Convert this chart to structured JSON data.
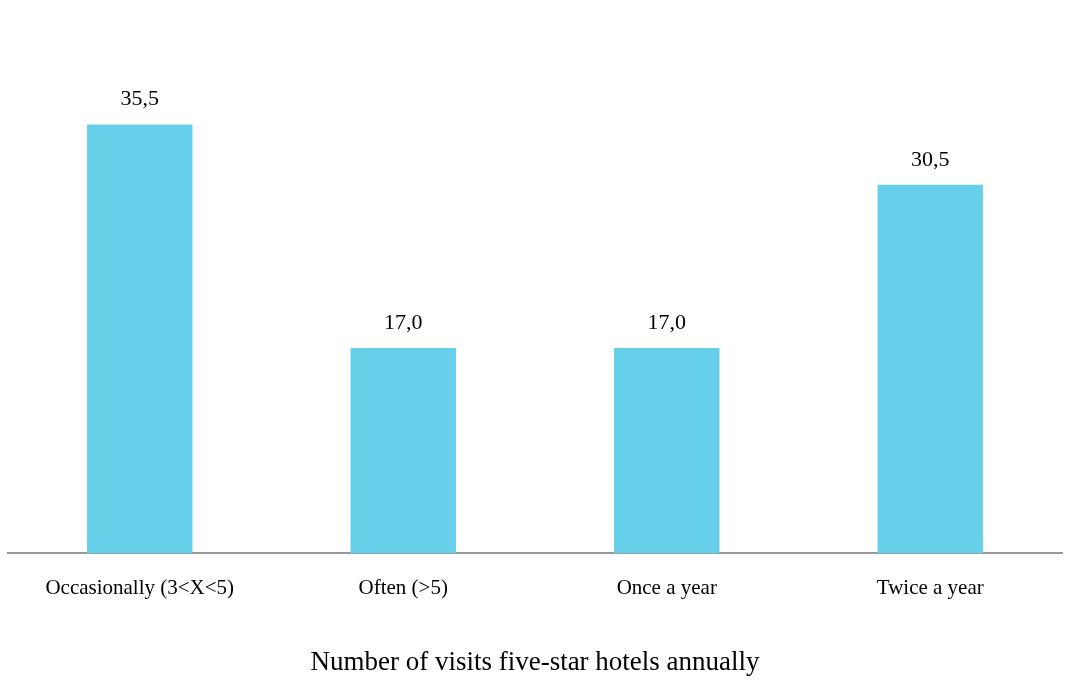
{
  "chart_data": {
    "type": "bar",
    "xlabel": "Number of visits five-star hotels annually",
    "categories": [
      "Occasionally (3<X<5)",
      "Often (>5)",
      "Once a year",
      "Twice a year"
    ],
    "values": [
      35.5,
      17.0,
      17.0,
      30.5
    ],
    "value_labels": [
      "35,5",
      "17,0",
      "17,0",
      "30,5"
    ],
    "color": "#66cfe9",
    "grid": false,
    "legend": false,
    "tick_labels": "x"
  }
}
